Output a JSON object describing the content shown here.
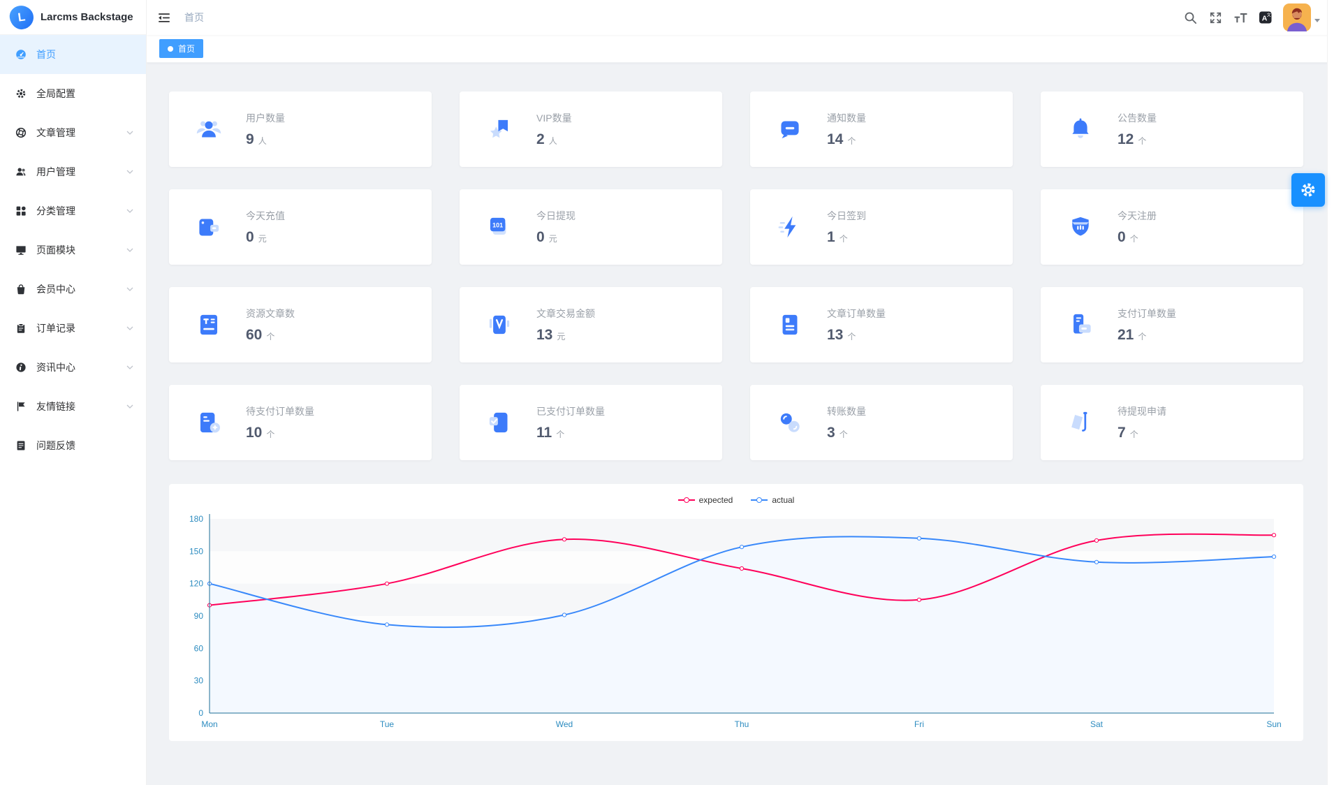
{
  "app": {
    "brand": "Larcms Backstage"
  },
  "navbar": {
    "breadcrumb": "首页",
    "icons": [
      "hamburger",
      "search",
      "fullscreen",
      "font-size",
      "translate",
      "avatar",
      "caret-down"
    ]
  },
  "tabs": [
    {
      "label": "首页",
      "active": true
    }
  ],
  "sidebar": {
    "items": [
      {
        "id": "home",
        "label": "首页",
        "icon": "dashboard",
        "active": true,
        "has_children": false
      },
      {
        "id": "global-config",
        "label": "全局配置",
        "icon": "gear",
        "active": false,
        "has_children": false
      },
      {
        "id": "article-manage",
        "label": "文章管理",
        "icon": "compass",
        "active": false,
        "has_children": true
      },
      {
        "id": "user-manage",
        "label": "用户管理",
        "icon": "users",
        "active": false,
        "has_children": true
      },
      {
        "id": "category-manage",
        "label": "分类管理",
        "icon": "grid",
        "active": false,
        "has_children": true
      },
      {
        "id": "page-module",
        "label": "页面模块",
        "icon": "monitor",
        "active": false,
        "has_children": true
      },
      {
        "id": "member-center",
        "label": "会员中心",
        "icon": "bag",
        "active": false,
        "has_children": true
      },
      {
        "id": "order-record",
        "label": "订单记录",
        "icon": "clipboard",
        "active": false,
        "has_children": true
      },
      {
        "id": "news-center",
        "label": "资讯中心",
        "icon": "info",
        "active": false,
        "has_children": true
      },
      {
        "id": "friend-links",
        "label": "友情链接",
        "icon": "flag",
        "active": false,
        "has_children": true
      },
      {
        "id": "feedback",
        "label": "问题反馈",
        "icon": "memo",
        "active": false,
        "has_children": false
      }
    ]
  },
  "cards": [
    {
      "id": "user-count",
      "label": "用户数量",
      "value": "9",
      "unit": "人",
      "icon": "users-group"
    },
    {
      "id": "vip-count",
      "label": "VIP数量",
      "value": "2",
      "unit": "人",
      "icon": "vip-star"
    },
    {
      "id": "notice-count",
      "label": "通知数量",
      "value": "14",
      "unit": "个",
      "icon": "message"
    },
    {
      "id": "announcement-count",
      "label": "公告数量",
      "value": "12",
      "unit": "个",
      "icon": "bell"
    },
    {
      "id": "today-recharge",
      "label": "今天充值",
      "value": "0",
      "unit": "元",
      "icon": "wallet"
    },
    {
      "id": "today-withdraw",
      "label": "今日提现",
      "value": "0",
      "unit": "元",
      "icon": "binary"
    },
    {
      "id": "today-checkin",
      "label": "今日签到",
      "value": "1",
      "unit": "个",
      "icon": "bolt"
    },
    {
      "id": "today-register",
      "label": "今天注册",
      "value": "0",
      "unit": "个",
      "icon": "shield"
    },
    {
      "id": "resource-article-count",
      "label": "资源文章数",
      "value": "60",
      "unit": "个",
      "icon": "doc-text"
    },
    {
      "id": "article-trade-amount",
      "label": "文章交易金额",
      "value": "13",
      "unit": "元",
      "icon": "card-v"
    },
    {
      "id": "article-order-count",
      "label": "文章订单数量",
      "value": "13",
      "unit": "个",
      "icon": "doc-order"
    },
    {
      "id": "pay-order-count",
      "label": "支付订单数量",
      "value": "21",
      "unit": "个",
      "icon": "receipt"
    },
    {
      "id": "unpaid-order-count",
      "label": "待支付订单数量",
      "value": "10",
      "unit": "个",
      "icon": "doc-pending"
    },
    {
      "id": "paid-order-count",
      "label": "已支付订单数量",
      "value": "11",
      "unit": "个",
      "icon": "doc-check"
    },
    {
      "id": "transfer-count",
      "label": "转账数量",
      "value": "3",
      "unit": "个",
      "icon": "transfer"
    },
    {
      "id": "pending-withdraw-request",
      "label": "待提现申请",
      "value": "7",
      "unit": "个",
      "icon": "withdraw"
    }
  ],
  "chart_data": {
    "type": "line",
    "smooth": true,
    "x": [
      "Mon",
      "Tue",
      "Wed",
      "Thu",
      "Fri",
      "Sat",
      "Sun"
    ],
    "series": [
      {
        "name": "expected",
        "color": "#ff005a",
        "values": [
          100,
          120,
          161,
          134,
          105,
          160,
          165
        ],
        "area": false
      },
      {
        "name": "actual",
        "color": "#3888fa",
        "values": [
          120,
          82,
          91,
          154,
          162,
          140,
          145
        ],
        "area": true,
        "area_color": "#f3f8ff"
      }
    ],
    "ylim": [
      0,
      180
    ],
    "ytick": 30,
    "legend_position": "top",
    "grid": "split-area"
  },
  "colors": {
    "accent": "#409eff",
    "fab": "#1890ff",
    "axis_label": "#2d8cc0",
    "axis_line": "#1b6d96",
    "icon_main": "#3d7bfa",
    "icon_light": "#c9dcfd",
    "sidebar_icon": "#2f3237"
  }
}
